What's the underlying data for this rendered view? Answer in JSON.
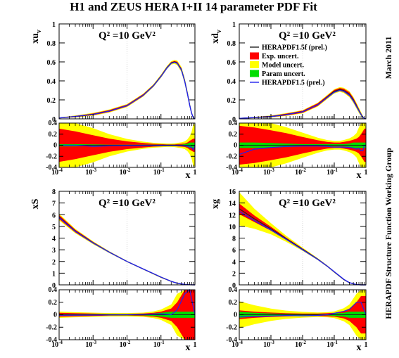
{
  "title": "H1 and ZEUS HERA I+II 14 parameter PDF Fit",
  "side_labels": {
    "date": "March 2011",
    "group": "HERAPDF Structure Function Working Group"
  },
  "colors": {
    "exp": "#ff0000",
    "model": "#ffff00",
    "param": "#00dd00",
    "central": "#222222",
    "herapdf15": "#2222ee"
  },
  "legend": {
    "entries": [
      {
        "label": "HERAPDF1.5f (prel.)",
        "kind": "line",
        "color": "#222222"
      },
      {
        "label": "Exp. uncert.",
        "kind": "box",
        "color": "#ff0000"
      },
      {
        "label": "Model uncert.",
        "kind": "box",
        "color": "#ffff00"
      },
      {
        "label": "Param uncert.",
        "kind": "box",
        "color": "#00dd00"
      },
      {
        "label": "HERAPDF1.5 (prel.)",
        "kind": "line",
        "color": "#2222ee"
      }
    ]
  },
  "chart_data": [
    {
      "id": "xuv",
      "type": "area",
      "ylabel": "xu_v",
      "annotation": "Q² =10 GeV²",
      "xlabel": "x",
      "xscale": "log",
      "xlim": [
        0.0001,
        1
      ],
      "ylim": [
        0,
        1
      ],
      "yticks": [
        0,
        0.2,
        0.4,
        0.6,
        0.8,
        1
      ],
      "x": [
        0.0001,
        0.0003,
        0.001,
        0.003,
        0.01,
        0.03,
        0.06,
        0.1,
        0.15,
        0.2,
        0.25,
        0.3,
        0.4,
        0.5,
        0.6,
        0.7,
        0.8,
        0.9,
        1.0
      ],
      "central": [
        0.01,
        0.025,
        0.048,
        0.083,
        0.14,
        0.25,
        0.35,
        0.45,
        0.54,
        0.59,
        0.6,
        0.59,
        0.52,
        0.4,
        0.27,
        0.15,
        0.06,
        0.012,
        0.0
      ],
      "herapdf15": [
        0.01,
        0.025,
        0.047,
        0.082,
        0.139,
        0.248,
        0.347,
        0.447,
        0.535,
        0.585,
        0.595,
        0.585,
        0.515,
        0.395,
        0.265,
        0.145,
        0.058,
        0.011,
        0.0
      ],
      "exp_rel": [
        0.3,
        0.25,
        0.18,
        0.12,
        0.07,
        0.04,
        0.025,
        0.02,
        0.015,
        0.015,
        0.015,
        0.02,
        0.025,
        0.03,
        0.05,
        0.08,
        0.1,
        0.12,
        0.12
      ],
      "model_rel": [
        0.4,
        0.33,
        0.25,
        0.16,
        0.09,
        0.05,
        0.035,
        0.03,
        0.025,
        0.025,
        0.028,
        0.035,
        0.045,
        0.06,
        0.09,
        0.13,
        0.2,
        0.3,
        0.3
      ],
      "param_rel": [
        0.02,
        0.02,
        0.015,
        0.01,
        0.01,
        0.01,
        0.01,
        0.01,
        0.01,
        0.01,
        0.01,
        0.01,
        0.01,
        0.02,
        0.03,
        0.05,
        0.1,
        0.2,
        0.2
      ],
      "ratio_ylim": [
        -0.4,
        0.4
      ],
      "ratio_yticks": [
        -0.4,
        -0.2,
        0,
        0.2,
        0.4
      ]
    },
    {
      "id": "xdv",
      "type": "area",
      "ylabel": "xd_v",
      "annotation": "Q² =10 GeV²",
      "xlabel": "x",
      "xscale": "log",
      "xlim": [
        0.0001,
        1
      ],
      "ylim": [
        0,
        1
      ],
      "yticks": [
        0,
        0.2,
        0.4,
        0.6,
        0.8,
        1
      ],
      "x": [
        0.0001,
        0.0003,
        0.001,
        0.003,
        0.01,
        0.03,
        0.06,
        0.1,
        0.15,
        0.2,
        0.3,
        0.4,
        0.5,
        0.6,
        0.7,
        0.8,
        0.9,
        1.0
      ],
      "central": [
        0.006,
        0.014,
        0.025,
        0.045,
        0.075,
        0.15,
        0.23,
        0.29,
        0.31,
        0.3,
        0.26,
        0.2,
        0.14,
        0.09,
        0.05,
        0.02,
        0.004,
        0.0
      ],
      "herapdf15": [
        0.005,
        0.013,
        0.024,
        0.044,
        0.074,
        0.148,
        0.225,
        0.28,
        0.3,
        0.29,
        0.25,
        0.19,
        0.13,
        0.085,
        0.045,
        0.018,
        0.004,
        0.0
      ],
      "exp_rel": [
        0.35,
        0.32,
        0.27,
        0.22,
        0.15,
        0.09,
        0.06,
        0.05,
        0.05,
        0.06,
        0.08,
        0.1,
        0.12,
        0.15,
        0.2,
        0.25,
        0.3,
        0.3
      ],
      "model_rel": [
        0.4,
        0.36,
        0.3,
        0.24,
        0.17,
        0.1,
        0.07,
        0.06,
        0.06,
        0.07,
        0.09,
        0.12,
        0.15,
        0.2,
        0.25,
        0.35,
        0.4,
        0.4
      ],
      "param_rel": [
        0.05,
        0.05,
        0.04,
        0.03,
        0.02,
        0.02,
        0.02,
        0.02,
        0.02,
        0.02,
        0.03,
        0.05,
        0.1,
        0.2,
        0.3,
        0.4,
        0.4,
        0.4
      ],
      "ratio_ylim": [
        -0.4,
        0.4
      ],
      "ratio_yticks": [
        -0.4,
        -0.2,
        0,
        0.2,
        0.4
      ]
    },
    {
      "id": "xS",
      "type": "area",
      "ylabel": "xS",
      "annotation": "Q² =10 GeV²",
      "xlabel": "x",
      "xscale": "log",
      "xlim": [
        0.0001,
        1
      ],
      "ylim": [
        0,
        8
      ],
      "yticks": [
        0,
        1,
        2,
        3,
        4,
        5,
        6,
        7,
        8
      ],
      "x": [
        0.0001,
        0.0003,
        0.001,
        0.003,
        0.01,
        0.03,
        0.06,
        0.1,
        0.2,
        0.3,
        0.5,
        0.7,
        1.0
      ],
      "central": [
        5.8,
        4.6,
        3.6,
        2.8,
        2.0,
        1.35,
        0.95,
        0.65,
        0.3,
        0.13,
        0.03,
        0.005,
        0.0
      ],
      "herapdf15": [
        5.75,
        4.57,
        3.58,
        2.79,
        2.0,
        1.36,
        0.96,
        0.66,
        0.3,
        0.14,
        0.04,
        0.01,
        0.0
      ],
      "exp_rel": [
        0.03,
        0.025,
        0.02,
        0.015,
        0.015,
        0.02,
        0.03,
        0.05,
        0.1,
        0.2,
        0.4,
        0.45,
        0.45
      ],
      "model_rel": [
        0.04,
        0.03,
        0.025,
        0.02,
        0.02,
        0.025,
        0.04,
        0.06,
        0.12,
        0.25,
        0.4,
        0.45,
        0.45
      ],
      "param_rel": [
        0.01,
        0.01,
        0.01,
        0.01,
        0.01,
        0.01,
        0.02,
        0.03,
        0.05,
        0.1,
        0.3,
        0.45,
        0.45
      ],
      "ratio_ylim": [
        -0.4,
        0.4
      ],
      "ratio_yticks": [
        -0.4,
        -0.2,
        0,
        0.2,
        0.4
      ]
    },
    {
      "id": "xg",
      "type": "area",
      "ylabel": "xg",
      "annotation": "Q² =10 GeV²",
      "xlabel": "x",
      "xscale": "log",
      "xlim": [
        0.0001,
        1
      ],
      "ylim": [
        0,
        16
      ],
      "yticks": [
        0,
        2,
        4,
        6,
        8,
        10,
        12,
        14,
        16
      ],
      "x": [
        0.0001,
        0.0003,
        0.001,
        0.003,
        0.01,
        0.03,
        0.06,
        0.1,
        0.2,
        0.3,
        0.5,
        0.7,
        1.0
      ],
      "central": [
        13.0,
        11.3,
        9.6,
        7.9,
        6.1,
        4.4,
        3.2,
        2.2,
        0.9,
        0.35,
        0.05,
        0.005,
        0.0
      ],
      "herapdf15": [
        12.6,
        11.0,
        9.4,
        7.8,
        6.0,
        4.35,
        3.2,
        2.25,
        0.95,
        0.38,
        0.06,
        0.006,
        0.0
      ],
      "exp_rel": [
        0.07,
        0.05,
        0.035,
        0.025,
        0.02,
        0.02,
        0.025,
        0.03,
        0.06,
        0.1,
        0.2,
        0.3,
        0.3
      ],
      "model_rel": [
        0.2,
        0.14,
        0.09,
        0.06,
        0.04,
        0.03,
        0.03,
        0.04,
        0.08,
        0.12,
        0.25,
        0.4,
        0.4
      ],
      "param_rel": [
        0.05,
        0.03,
        0.02,
        0.015,
        0.01,
        0.01,
        0.01,
        0.02,
        0.03,
        0.05,
        0.1,
        0.2,
        0.2
      ],
      "ratio_ylim": [
        -0.4,
        0.4
      ],
      "ratio_yticks": [
        -0.4,
        -0.2,
        0,
        0.2,
        0.4
      ]
    }
  ]
}
